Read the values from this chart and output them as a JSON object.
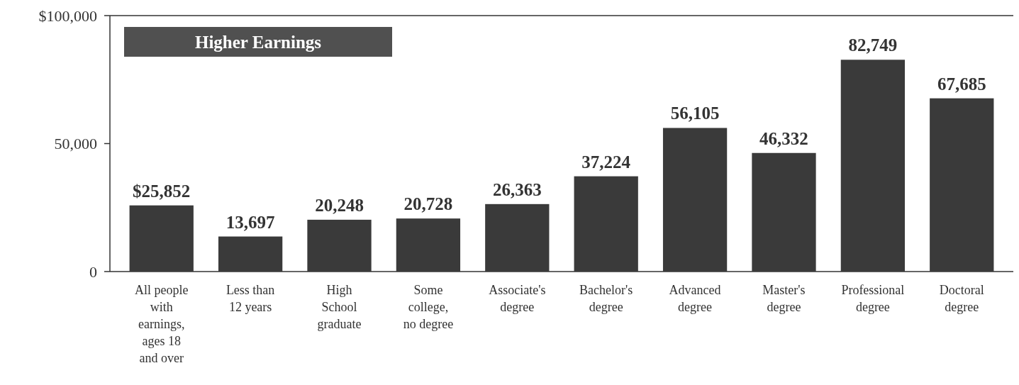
{
  "chart_data": {
    "type": "bar",
    "title": "Higher Earnings",
    "categories": [
      "All people with earnings, ages 18 and over",
      "Less than 12 years",
      "High School graduate",
      "Some college, no degree",
      "Associate's degree",
      "Bachelor's degree",
      "Advanced degree",
      "Master's degree",
      "Professional degree",
      "Doctoral degree"
    ],
    "values": [
      25852,
      13697,
      20248,
      20728,
      26363,
      37224,
      56105,
      46332,
      82749,
      67685
    ],
    "value_labels": [
      "$25,852",
      "13,697",
      "20,248",
      "20,728",
      "26,363",
      "37,224",
      "56,105",
      "46,332",
      "82,749",
      "67,685"
    ],
    "color": "#3a3a3a",
    "ylim": [
      0,
      100000
    ],
    "yticks": [
      0,
      {
        "value": 50000,
        "label": "50,000"
      },
      {
        "value": 100000,
        "label": "$100,000"
      }
    ],
    "grid": false
  }
}
